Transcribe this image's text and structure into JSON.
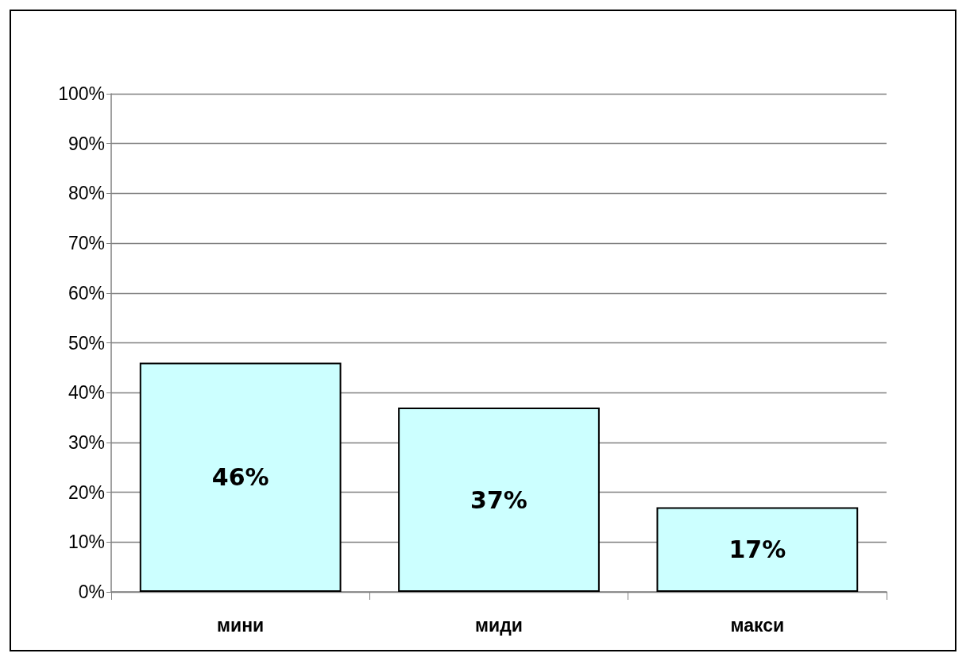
{
  "chart_data": {
    "type": "bar",
    "categories": [
      "мини",
      "миди",
      "макси"
    ],
    "values": [
      46,
      37,
      17
    ],
    "value_labels": [
      "46%",
      "37%",
      "17%"
    ],
    "color": "#ccffff",
    "ylim": [
      0,
      100
    ],
    "yticks": [
      {
        "value": 0,
        "label": "0%"
      },
      {
        "value": 10,
        "label": "10%"
      },
      {
        "value": 20,
        "label": "20%"
      },
      {
        "value": 30,
        "label": "30%"
      },
      {
        "value": 40,
        "label": "40%"
      },
      {
        "value": 50,
        "label": "50%"
      },
      {
        "value": 60,
        "label": "60%"
      },
      {
        "value": 70,
        "label": "70%"
      },
      {
        "value": 80,
        "label": "80%"
      },
      {
        "value": 90,
        "label": "90%"
      },
      {
        "value": 100,
        "label": "100%"
      }
    ],
    "grid": "y"
  }
}
